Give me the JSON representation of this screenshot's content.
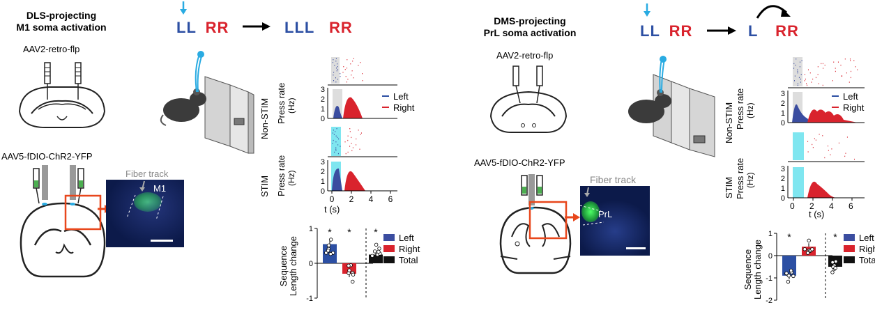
{
  "left": {
    "title_line1": "DLS-projecting",
    "title_line2": "M1 soma activation",
    "virus1": "AAV2-retro-flp",
    "virus2": "AAV5-fDIO-ChR2-YFP",
    "fiber_track": "Fiber track",
    "region": "M1",
    "seq_before_L": "LL",
    "seq_before_R": "RR",
    "seq_after_L": "LLL",
    "seq_after_R": "RR",
    "non_stim": "Non-STIM",
    "stim": "STIM",
    "press_rate": "Press rate",
    "hz": "(Hz)",
    "legend_left": "Left",
    "legend_right": "Right",
    "xlabel": "t (s)",
    "bar_ylabel1": "Sequence",
    "bar_ylabel2": "Length change",
    "bar_legend": [
      "Left",
      "Right",
      "Total"
    ],
    "star": "*"
  },
  "right": {
    "title_line1": "DMS-projecting",
    "title_line2": "PrL soma activation",
    "virus1": "AAV2-retro-flp",
    "virus2": "AAV5-fDIO-ChR2-YFP",
    "fiber_track": "Fiber track",
    "region": "PrL",
    "seq_before_L": "LL",
    "seq_before_R": "RR",
    "seq_after_L": "L",
    "seq_after_R": "RR",
    "non_stim": "Non-STIM",
    "stim": "STIM",
    "press_rate": "Press rate",
    "hz": "(Hz)",
    "legend_left": "Left",
    "legend_right": "Right",
    "xlabel": "t (s)",
    "bar_ylabel1": "Sequence",
    "bar_ylabel2": "Length change",
    "bar_legend": [
      "Left",
      "Right",
      "Total"
    ],
    "star": "*"
  },
  "colors": {
    "left": "#2c4fa3",
    "right": "#d9232d",
    "total": "#111111",
    "stim": "#7fe6f0",
    "light": "#29abe2"
  },
  "chart_data": [
    {
      "type": "bar",
      "categories": [
        "Left",
        "Right",
        "Total"
      ],
      "values": [
        0.55,
        -0.3,
        0.25
      ],
      "ylim": [
        -1,
        1
      ],
      "yticks": [
        "1",
        "0",
        "-1"
      ]
    },
    {
      "type": "bar",
      "categories": [
        "Left",
        "Right",
        "Total"
      ],
      "values": [
        -0.9,
        0.4,
        -0.5
      ],
      "ylim": [
        -2,
        1
      ],
      "yticks": [
        "1",
        "0",
        "-1",
        "-2"
      ]
    },
    {
      "type": "area",
      "x_ticks": [
        "0",
        "2",
        "4",
        "6"
      ],
      "y_ticks": [
        "0",
        "1",
        "2",
        "3"
      ]
    }
  ]
}
